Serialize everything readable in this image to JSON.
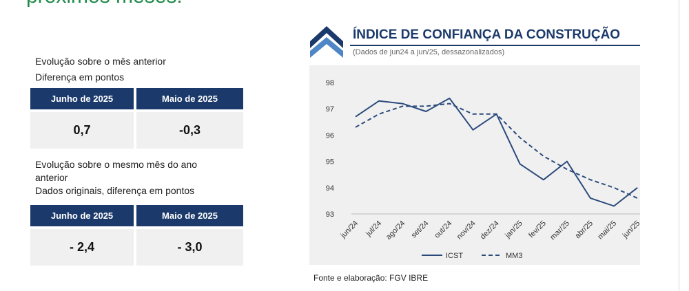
{
  "page": {
    "heading_fragment": "próximos meses."
  },
  "monthly": {
    "line1": "Evolução sobre o mês anterior",
    "line2": "Diferença em pontos",
    "headers": [
      "Junho de 2025",
      "Maio de 2025"
    ],
    "values": [
      "0,7",
      "-0,3"
    ]
  },
  "yearly": {
    "line1": "Evolução sobre o mesmo mês do ano",
    "line2": "anterior",
    "line3": "Dados originais, diferença em pontos",
    "headers": [
      "Junho de 2025",
      "Maio de 2025"
    ],
    "values": [
      "- 2,4",
      "- 3,0"
    ]
  },
  "chart_data": {
    "type": "line",
    "title": "ÍNDICE DE CONFIANÇA DA CONSTRUÇÃO",
    "subtitle": "(Dados de jun24 a jun/25, dessazonalizados)",
    "categories": [
      "jun/24",
      "jul/24",
      "ago/24",
      "set/24",
      "out/24",
      "nov/24",
      "dez/24",
      "jan/25",
      "fev/25",
      "mar/25",
      "abr/25",
      "mai/25",
      "jun/25"
    ],
    "series": [
      {
        "name": "ICST",
        "style": "solid",
        "color": "#2b4a7c",
        "values": [
          96.7,
          97.3,
          97.2,
          96.9,
          97.4,
          96.2,
          96.8,
          94.9,
          94.3,
          95.0,
          93.6,
          93.3,
          94.0
        ]
      },
      {
        "name": "MM3",
        "style": "dashed",
        "color": "#2b4a7c",
        "values": [
          96.3,
          96.8,
          97.1,
          97.1,
          97.2,
          96.8,
          96.8,
          95.9,
          95.2,
          94.7,
          94.3,
          94.0,
          93.6
        ]
      }
    ],
    "ylim": [
      93,
      98
    ],
    "yticks": [
      93,
      94,
      95,
      96,
      97,
      98
    ],
    "grid": false,
    "legend": "bottom-center"
  },
  "source": "Fonte e elaboração: FGV IBRE",
  "colors": {
    "navy": "#1b3a6b",
    "line": "#2b4a7c",
    "panel": "#f0f0f0",
    "heading_green": "#1f8a4a"
  }
}
